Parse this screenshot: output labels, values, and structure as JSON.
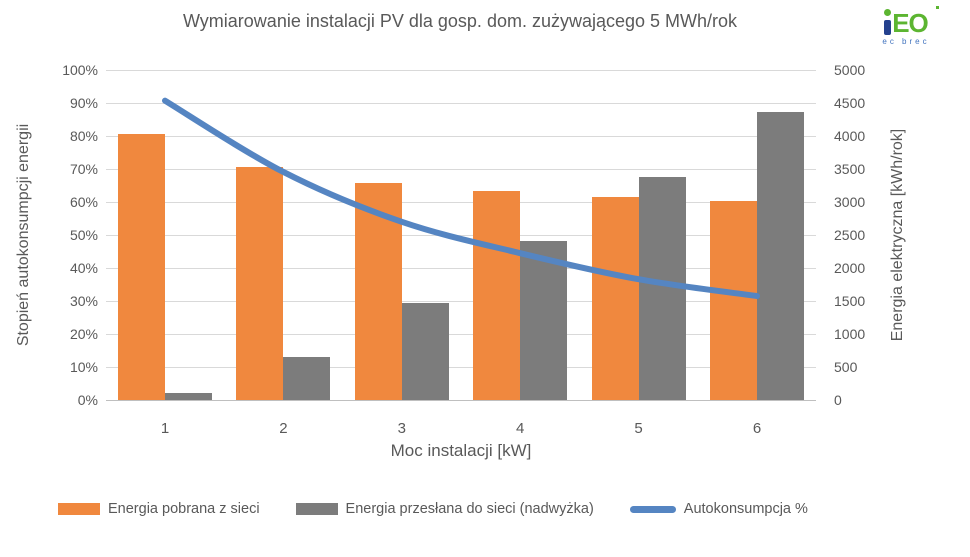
{
  "logo": {
    "letters_eo": "EO",
    "subtext": "ec brec",
    "green": "#5CB531",
    "navy": "#24418E",
    "blue": "#4173BE"
  },
  "colors": {
    "text": "#595959",
    "gridline": "#D9D9D9",
    "axis_line": "#BFBFBF",
    "bar_orange": "#F0883E",
    "bar_gray": "#7C7C7C",
    "line_blue": "#5585C2"
  },
  "chart_data": {
    "type": "combo-bar-line",
    "title": "Wymiarowanie instalacji PV dla gosp. dom. zużywającego 5 MWh/rok",
    "categories": [
      "1",
      "2",
      "3",
      "4",
      "5",
      "6"
    ],
    "xlabel": "Moc instalacji [kW]",
    "ylabel_left": "Stopień autokonsumpcji energii",
    "ylabel_right": "Energia elektryczna [kWh/rok]",
    "axis_left": {
      "min": 0,
      "max": 100,
      "step": 10,
      "suffix": "%"
    },
    "axis_right": {
      "min": 0,
      "max": 5000,
      "step": 500,
      "suffix": ""
    },
    "grid": true,
    "legend_position": "bottom",
    "series": [
      {
        "name": "Energia pobrana z sieci",
        "type": "bar",
        "axis": "right",
        "color": "#F0883E",
        "values": [
          4025,
          3530,
          3290,
          3160,
          3080,
          3010
        ]
      },
      {
        "name": "Energia przesłana do sieci (nadwyżka)",
        "type": "bar",
        "axis": "right",
        "color": "#7C7C7C",
        "values": [
          100,
          655,
          1465,
          2405,
          3375,
          4370
        ]
      },
      {
        "name": "Autokonsumpcja %",
        "type": "line",
        "axis": "left",
        "color": "#5585C2",
        "values": [
          90.7,
          69.1,
          54.0,
          44.5,
          36.6,
          31.5
        ]
      }
    ]
  }
}
